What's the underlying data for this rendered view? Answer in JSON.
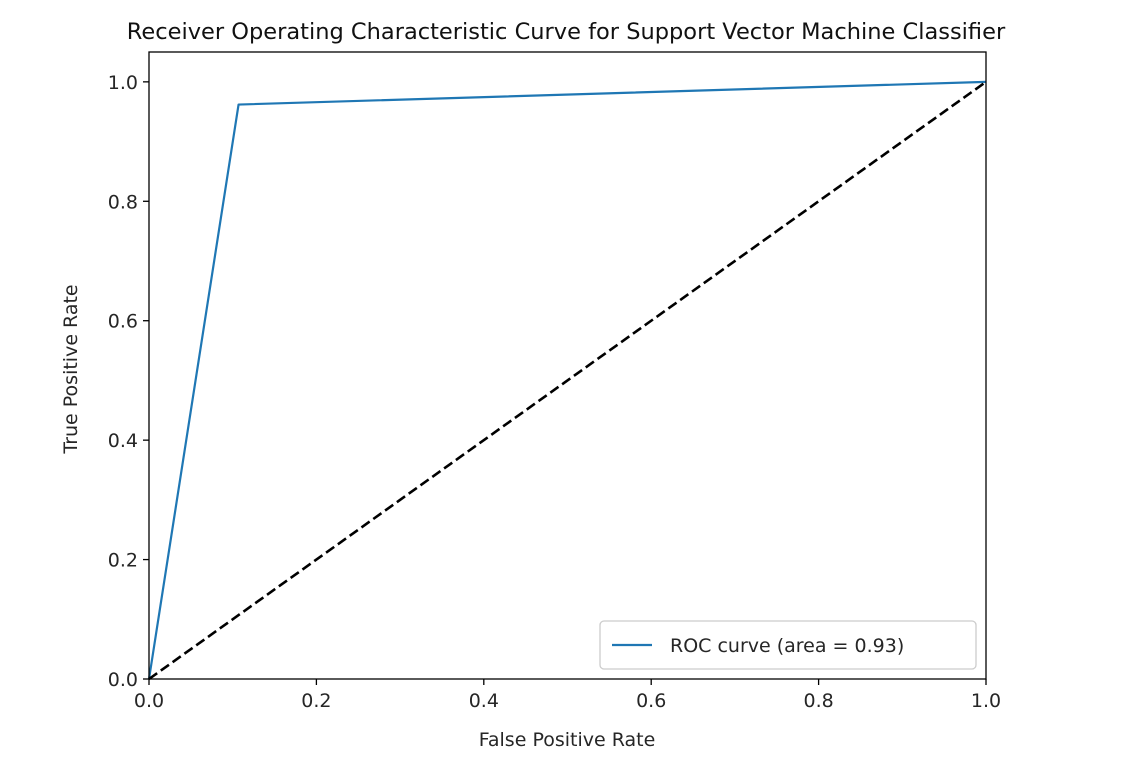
{
  "chart_data": {
    "type": "line",
    "title": "Receiver Operating Characteristic Curve for Support Vector Machine Classifier",
    "xlabel": "False Positive Rate",
    "ylabel": "True Positive Rate",
    "xlim": [
      0.0,
      1.0
    ],
    "ylim": [
      0.0,
      1.05
    ],
    "xticks": [
      0.0,
      0.2,
      0.4,
      0.6,
      0.8,
      1.0
    ],
    "yticks": [
      0.0,
      0.2,
      0.4,
      0.6,
      0.8,
      1.0
    ],
    "xtick_labels": [
      "0.0",
      "0.2",
      "0.4",
      "0.6",
      "0.8",
      "1.0"
    ],
    "ytick_labels": [
      "0.0",
      "0.2",
      "0.4",
      "0.6",
      "0.8",
      "1.0"
    ],
    "grid": false,
    "legend_position": "lower-right",
    "series": [
      {
        "name": "ROC curve (area = 0.93)",
        "color": "#1f77b4",
        "style": "solid",
        "x": [
          0.0,
          0.107,
          1.0
        ],
        "y": [
          0.0,
          0.962,
          1.0
        ]
      },
      {
        "color": "#000000",
        "style": "dashed",
        "x": [
          0.0,
          1.0
        ],
        "y": [
          0.0,
          1.0
        ]
      }
    ]
  }
}
